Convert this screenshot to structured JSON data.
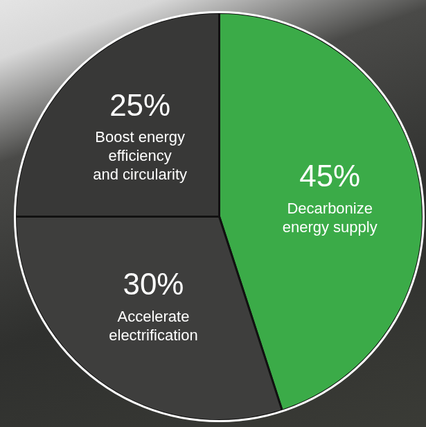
{
  "chart_data": {
    "type": "pie",
    "categories": [
      [
        "Decarbonize",
        "energy supply"
      ],
      [
        "Accelerate",
        "electrification"
      ],
      [
        "Boost energy",
        "efficiency",
        "and circularity"
      ]
    ],
    "values": [
      45,
      30,
      25
    ],
    "value_labels": [
      "45%",
      "30%",
      "25%"
    ],
    "colors": [
      "#3bab48",
      "#3e3e3d",
      "#383837"
    ],
    "data_labels": true
  }
}
